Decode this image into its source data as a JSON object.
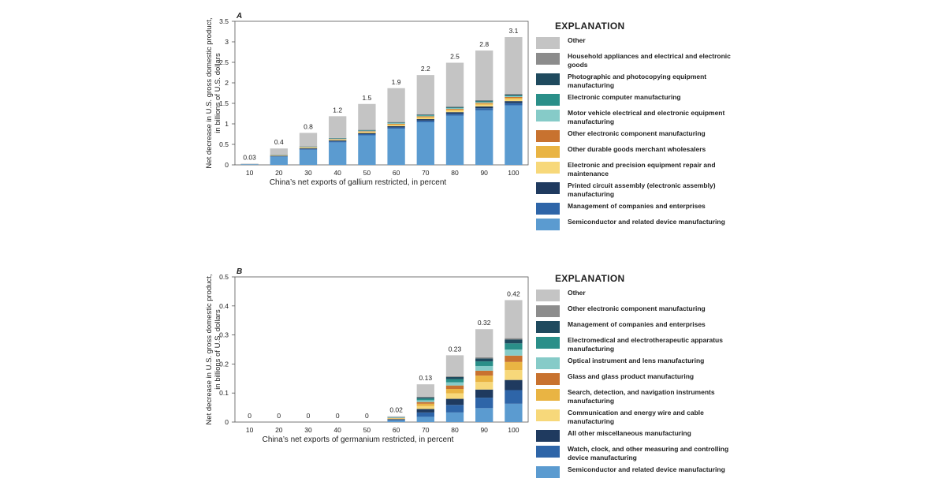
{
  "chart_data": [
    {
      "type": "bar",
      "stacked": true,
      "panel_label": "A",
      "categories": [
        "10",
        "20",
        "30",
        "40",
        "50",
        "60",
        "70",
        "80",
        "90",
        "100"
      ],
      "xlabel": "China’s net exports of gallium restricted, in percent",
      "ylabel": "Net decrease in U.S. gross domestic product, in billions of U.S. dollars",
      "ylim": [
        0,
        3.5
      ],
      "yticks": [
        "0",
        "0.5",
        "1",
        "1.5",
        "2",
        "2.5",
        "3",
        "3.5"
      ],
      "total_labels": [
        "0.03",
        "0.4",
        "0.8",
        "1.2",
        "1.5",
        "1.9",
        "2.2",
        "2.5",
        "2.8",
        "3.1"
      ],
      "legend_title": "EXPLANATION",
      "legend_placement": "right",
      "series": [
        {
          "name": "Semiconductor and related device manufacturing",
          "color": "#5b9bd0",
          "values": [
            0.015,
            0.2,
            0.37,
            0.55,
            0.72,
            0.88,
            1.04,
            1.2,
            1.33,
            1.45
          ]
        },
        {
          "name": "Management of companies and enterprises",
          "color": "#2e65a8",
          "values": [
            0.001,
            0.01,
            0.02,
            0.025,
            0.03,
            0.035,
            0.04,
            0.045,
            0.05,
            0.055
          ]
        },
        {
          "name": "Printed circuit assembly (electronic assembly) manufacturing",
          "color": "#1f3a5f",
          "values": [
            0.001,
            0.01,
            0.015,
            0.02,
            0.025,
            0.03,
            0.035,
            0.04,
            0.045,
            0.05
          ]
        },
        {
          "name": "Electronic and precision equipment repair and maintenance",
          "color": "#f7d87a",
          "values": [
            0.001,
            0.008,
            0.012,
            0.015,
            0.02,
            0.025,
            0.03,
            0.035,
            0.04,
            0.045
          ]
        },
        {
          "name": "Other durable goods merchant wholesalers",
          "color": "#e9b443",
          "values": [
            0.001,
            0.005,
            0.008,
            0.01,
            0.015,
            0.02,
            0.025,
            0.028,
            0.03,
            0.035
          ]
        },
        {
          "name": "Other electronic component manufacturing",
          "color": "#c8722f",
          "values": [
            0.0,
            0.004,
            0.006,
            0.008,
            0.01,
            0.012,
            0.014,
            0.016,
            0.018,
            0.02
          ]
        },
        {
          "name": "Motor vehicle electrical and electronic equipment manufacturing",
          "color": "#86cbc8",
          "values": [
            0.0,
            0.004,
            0.006,
            0.008,
            0.01,
            0.012,
            0.014,
            0.016,
            0.018,
            0.02
          ]
        },
        {
          "name": "Electronic computer manufacturing",
          "color": "#2a8f89",
          "values": [
            0.0,
            0.004,
            0.006,
            0.008,
            0.01,
            0.012,
            0.014,
            0.016,
            0.018,
            0.02
          ]
        },
        {
          "name": "Photographic and photocopying equipment manufacturing",
          "color": "#1f4a5e",
          "values": [
            0.0,
            0.003,
            0.004,
            0.006,
            0.008,
            0.01,
            0.012,
            0.014,
            0.016,
            0.018
          ]
        },
        {
          "name": "Household appliances and electrical and electronic goods",
          "color": "#8c8c8c",
          "values": [
            0.0,
            0.003,
            0.004,
            0.006,
            0.008,
            0.01,
            0.012,
            0.014,
            0.016,
            0.018
          ]
        },
        {
          "name": "Other",
          "color": "#c4c4c4",
          "values": [
            0.011,
            0.149,
            0.329,
            0.53,
            0.629,
            0.824,
            0.954,
            1.066,
            1.206,
            1.384
          ]
        }
      ]
    },
    {
      "type": "bar",
      "stacked": true,
      "panel_label": "B",
      "categories": [
        "10",
        "20",
        "30",
        "40",
        "50",
        "60",
        "70",
        "80",
        "90",
        "100"
      ],
      "xlabel": "China’s net exports of germanium restricted, in percent",
      "ylabel": "Net decrease in U.S. gross domestic product, in billions of U.S. dollars",
      "ylim": [
        0,
        0.5
      ],
      "yticks": [
        "0",
        "0.1",
        "0.2",
        "0.3",
        "0.4",
        "0.5"
      ],
      "total_labels": [
        "0",
        "0",
        "0",
        "0",
        "0",
        "0.02",
        "0.13",
        "0.23",
        "0.32",
        "0.42"
      ],
      "legend_title": "EXPLANATION",
      "legend_placement": "right",
      "series": [
        {
          "name": "Semiconductor and related device manufacturing",
          "color": "#5b9bd0",
          "values": [
            0,
            0,
            0,
            0,
            0,
            0.005,
            0.018,
            0.033,
            0.048,
            0.063
          ]
        },
        {
          "name": "Watch, clock, and other measuring and controlling device manufacturing",
          "color": "#2e65a8",
          "values": [
            0,
            0,
            0,
            0,
            0,
            0.003,
            0.015,
            0.026,
            0.036,
            0.047
          ]
        },
        {
          "name": "All other miscellaneous manufacturing",
          "color": "#1f3a5f",
          "values": [
            0,
            0,
            0,
            0,
            0,
            0.002,
            0.012,
            0.021,
            0.028,
            0.035
          ]
        },
        {
          "name": "Communication and energy wire and cable manufacturing",
          "color": "#f7d87a",
          "values": [
            0,
            0,
            0,
            0,
            0,
            0.002,
            0.01,
            0.019,
            0.026,
            0.034
          ]
        },
        {
          "name": "Search, detection, and navigation instruments manufacturing",
          "color": "#e9b443",
          "values": [
            0,
            0,
            0,
            0,
            0,
            0.001,
            0.008,
            0.015,
            0.022,
            0.028
          ]
        },
        {
          "name": "Glass and glass product manufacturing",
          "color": "#c8722f",
          "values": [
            0,
            0,
            0,
            0,
            0,
            0.001,
            0.006,
            0.012,
            0.017,
            0.022
          ]
        },
        {
          "name": "Optical instrument and lens manufacturing",
          "color": "#86cbc8",
          "values": [
            0,
            0,
            0,
            0,
            0,
            0.001,
            0.006,
            0.011,
            0.016,
            0.021
          ]
        },
        {
          "name": "Electromedical and electrotherapeutic apparatus manufacturing",
          "color": "#2a8f89",
          "values": [
            0,
            0,
            0,
            0,
            0,
            0.001,
            0.006,
            0.011,
            0.016,
            0.021
          ]
        },
        {
          "name": "Management of companies and enterprises",
          "color": "#1f4a5e",
          "values": [
            0,
            0,
            0,
            0,
            0,
            0.001,
            0.004,
            0.007,
            0.01,
            0.013
          ]
        },
        {
          "name": "Other electronic component manufacturing",
          "color": "#8c8c8c",
          "values": [
            0,
            0,
            0,
            0,
            0,
            0.0,
            0.002,
            0.003,
            0.004,
            0.005
          ]
        },
        {
          "name": "Other",
          "color": "#c4c4c4",
          "values": [
            0,
            0,
            0,
            0,
            0,
            0.003,
            0.043,
            0.072,
            0.097,
            0.131
          ]
        }
      ]
    }
  ]
}
